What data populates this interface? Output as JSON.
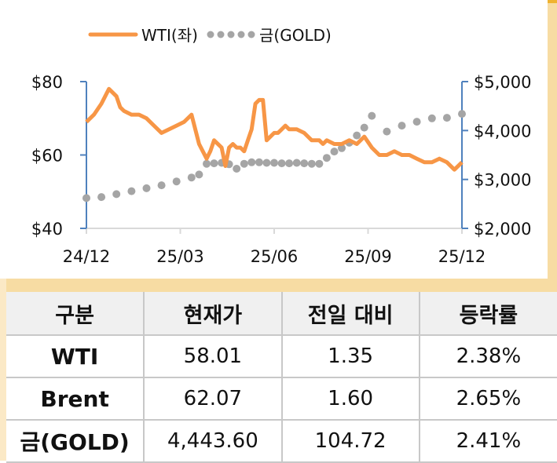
{
  "chart_data": {
    "type": "line",
    "title": "",
    "legend": {
      "position": "top",
      "entries": [
        {
          "name": "WTI(좌)",
          "style": "solid-line",
          "color": "#f79646",
          "axis": "left"
        },
        {
          "name": "금(GOLD)",
          "style": "dotted",
          "color": "#a5a5a5",
          "axis": "right"
        }
      ]
    },
    "x_ticks": [
      "24/12",
      "25/03",
      "25/06",
      "25/09",
      "25/12"
    ],
    "left_axis": {
      "label": "",
      "ticks": [
        "$40",
        "$60",
        "$80"
      ],
      "range": [
        40,
        80
      ]
    },
    "right_axis": {
      "label": "",
      "ticks": [
        "$2,000",
        "$3,000",
        "$4,000",
        "$5,000"
      ],
      "range": [
        2000,
        5000
      ]
    },
    "grid": false,
    "series": [
      {
        "name": "WTI(좌)",
        "axis": "left",
        "x_frac": [
          0.0,
          0.02,
          0.04,
          0.06,
          0.08,
          0.09,
          0.1,
          0.12,
          0.14,
          0.16,
          0.18,
          0.2,
          0.22,
          0.24,
          0.26,
          0.28,
          0.3,
          0.32,
          0.33,
          0.34,
          0.36,
          0.37,
          0.38,
          0.39,
          0.4,
          0.41,
          0.42,
          0.43,
          0.44,
          0.45,
          0.46,
          0.47,
          0.48,
          0.5,
          0.51,
          0.52,
          0.53,
          0.54,
          0.56,
          0.58,
          0.6,
          0.62,
          0.63,
          0.64,
          0.66,
          0.68,
          0.7,
          0.72,
          0.74,
          0.76,
          0.78,
          0.8,
          0.82,
          0.84,
          0.86,
          0.88,
          0.9,
          0.92,
          0.94,
          0.96,
          0.98,
          1.0
        ],
        "values": [
          69,
          71,
          74,
          78,
          76,
          73,
          72,
          71,
          71,
          70,
          68,
          66,
          67,
          68,
          69,
          71,
          63,
          59,
          61,
          64,
          62,
          57,
          62,
          63,
          62,
          62,
          61,
          64,
          67,
          74,
          75,
          75,
          64,
          66,
          66,
          67,
          68,
          67,
          67,
          66,
          64,
          64,
          63,
          64,
          63,
          63,
          64,
          63,
          65,
          62,
          60,
          60,
          61,
          60,
          60,
          59,
          58,
          58,
          59,
          58,
          56,
          58
        ]
      },
      {
        "name": "금(GOLD)",
        "axis": "right",
        "x_frac": [
          0.0,
          0.04,
          0.08,
          0.12,
          0.16,
          0.2,
          0.24,
          0.28,
          0.3,
          0.32,
          0.34,
          0.36,
          0.38,
          0.4,
          0.42,
          0.44,
          0.46,
          0.48,
          0.5,
          0.52,
          0.54,
          0.56,
          0.58,
          0.6,
          0.62,
          0.64,
          0.66,
          0.68,
          0.7,
          0.72,
          0.74,
          0.76,
          0.8,
          0.84,
          0.88,
          0.92,
          0.96,
          1.0
        ],
        "values": [
          2620,
          2640,
          2700,
          2760,
          2820,
          2880,
          2960,
          3040,
          3100,
          3320,
          3330,
          3340,
          3310,
          3220,
          3320,
          3350,
          3350,
          3340,
          3340,
          3330,
          3330,
          3340,
          3330,
          3320,
          3320,
          3440,
          3570,
          3640,
          3750,
          3900,
          4060,
          4300,
          3980,
          4100,
          4180,
          4250,
          4260,
          4340
        ]
      }
    ]
  },
  "table": {
    "headers": [
      "구분",
      "현재가",
      "전일 대비",
      "등락률"
    ],
    "rows": [
      {
        "name": "WTI",
        "price": "58.01",
        "change": "1.35",
        "rate": "2.38%"
      },
      {
        "name": "Brent",
        "price": "62.07",
        "change": "1.60",
        "rate": "2.65%"
      },
      {
        "name": "금(GOLD)",
        "price": "4,443.60",
        "change": "104.72",
        "rate": "2.41%"
      }
    ]
  }
}
